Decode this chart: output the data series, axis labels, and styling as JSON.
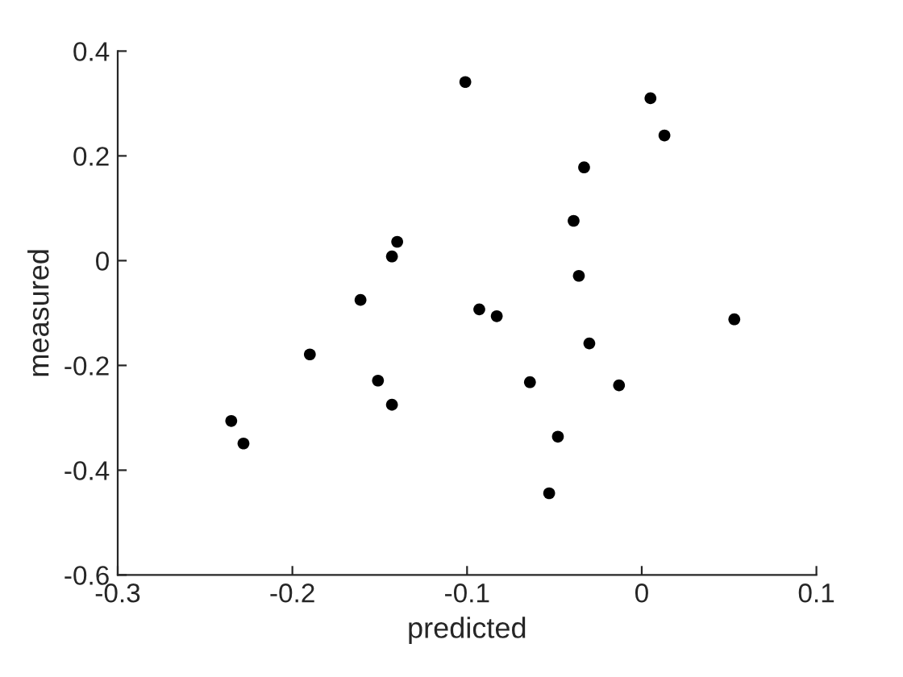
{
  "chart_data": {
    "type": "scatter",
    "xlabel": "predicted",
    "ylabel": "measured",
    "x": [
      -0.101,
      -0.14,
      -0.143,
      -0.161,
      -0.19,
      -0.151,
      -0.143,
      -0.235,
      -0.228,
      -0.093,
      -0.083,
      -0.064,
      0.005,
      0.013,
      -0.033,
      -0.039,
      -0.036,
      -0.03,
      -0.013,
      0.053,
      -0.048,
      -0.053
    ],
    "values": [
      0.341,
      0.036,
      0.008,
      -0.075,
      -0.179,
      -0.229,
      -0.275,
      -0.306,
      -0.349,
      -0.093,
      -0.106,
      -0.232,
      0.31,
      0.239,
      0.178,
      0.076,
      -0.029,
      -0.158,
      -0.238,
      -0.112,
      -0.336,
      -0.444
    ],
    "color": "#000000",
    "marker": "circle",
    "xlim": [
      -0.3,
      0.1
    ],
    "xticks": [
      -0.3,
      -0.2,
      -0.1,
      0,
      0.1
    ],
    "ylim": [
      -0.6,
      0.4
    ],
    "yticks": [
      -0.6,
      -0.4,
      -0.2,
      0,
      0.2,
      0.4
    ],
    "grid": false,
    "legend": false
  }
}
